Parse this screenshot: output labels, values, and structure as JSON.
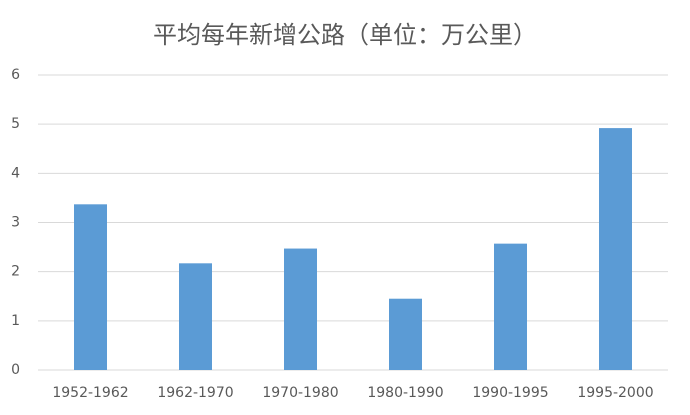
{
  "chart_data": {
    "type": "bar",
    "title": "平均每年新增公路（单位：万公里）",
    "categories": [
      "1952-1962",
      "1962-1970",
      "1970-1980",
      "1980-1990",
      "1990-1995",
      "1995-2000"
    ],
    "values": [
      3.37,
      2.17,
      2.47,
      1.45,
      2.57,
      4.92
    ],
    "color": "#5b9bd5",
    "ylim": [
      0,
      6
    ],
    "yticks": [
      0,
      1,
      2,
      3,
      4,
      5,
      6
    ],
    "grid": true
  }
}
